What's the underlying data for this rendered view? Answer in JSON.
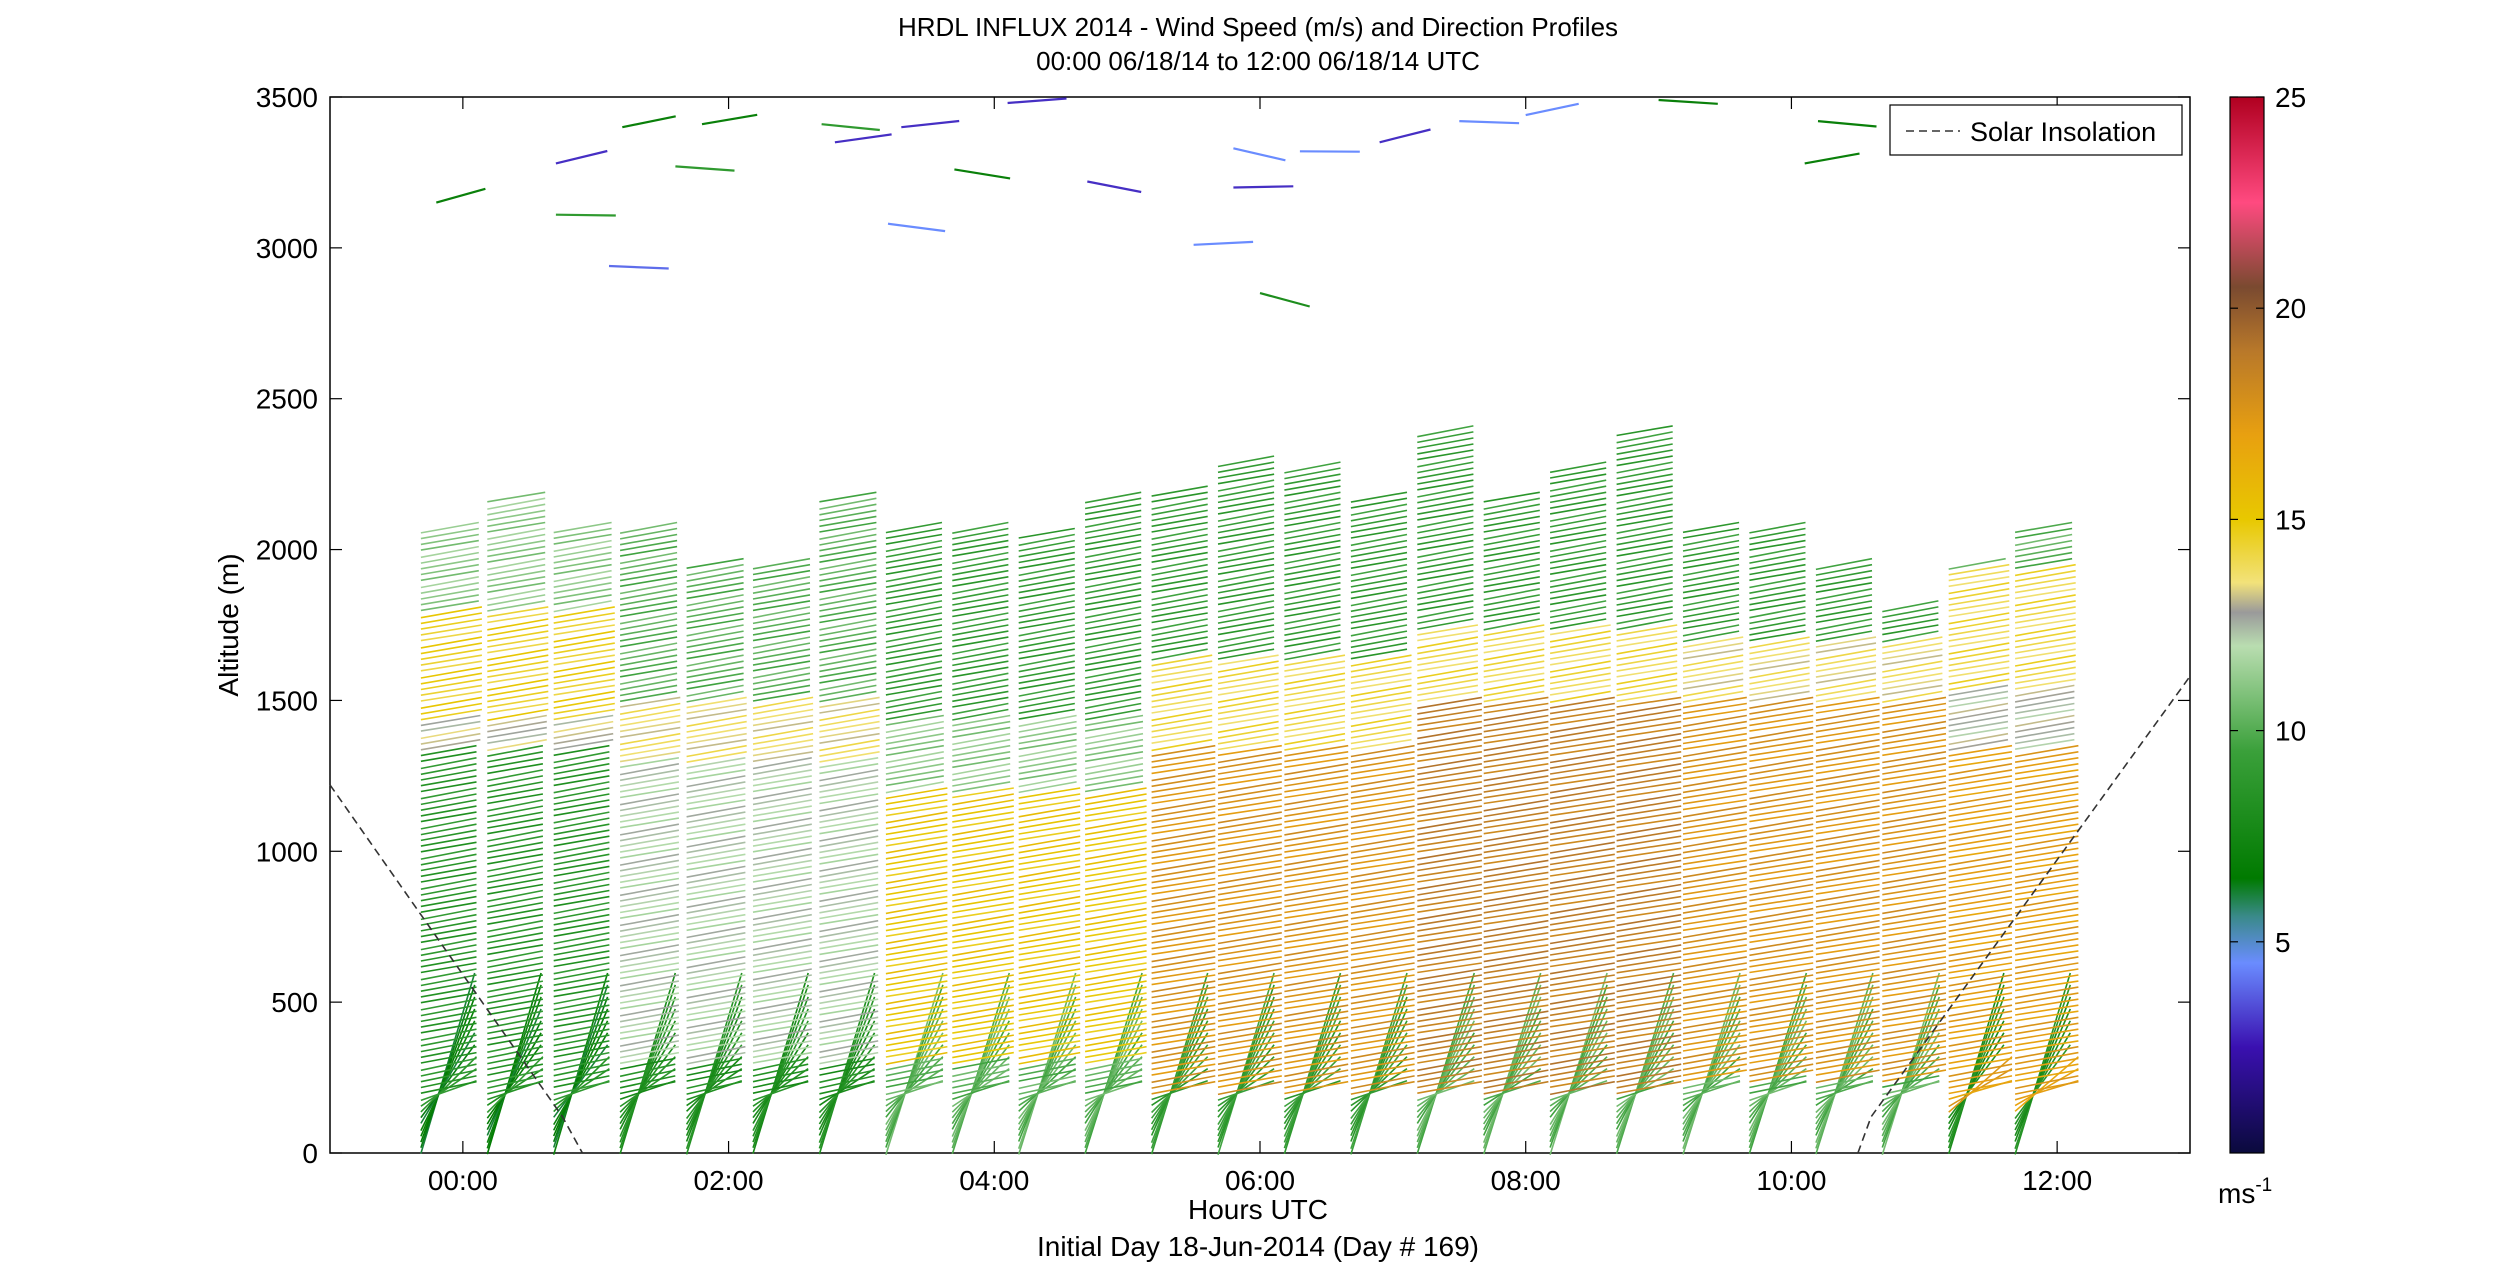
{
  "chart_data": {
    "type": "wind_barb_profile",
    "title": "HRDL INFLUX 2014 - Wind Speed (m/s) and Direction Profiles",
    "subtitle": "00:00 06/18/14 to 12:00 06/18/14  UTC",
    "xlabel": "Hours UTC",
    "xlabel2": "Initial Day 18-Jun-2014 (Day # 169)",
    "ylabel": "Altitude (m)",
    "xlim": [
      -1.0,
      13.0
    ],
    "ylim": [
      0,
      3500
    ],
    "xticks": [
      0,
      2,
      4,
      6,
      8,
      10,
      12
    ],
    "xtick_labels": [
      "00:00",
      "02:00",
      "04:00",
      "06:00",
      "08:00",
      "10:00",
      "12:00"
    ],
    "yticks": [
      0,
      500,
      1000,
      1500,
      2000,
      2500,
      3000,
      3500
    ],
    "ytick_labels": [
      "0",
      "500",
      "1000",
      "1500",
      "2000",
      "2500",
      "3000",
      "3500"
    ],
    "colorbar": {
      "range": [
        0,
        25
      ],
      "ticks": [
        5,
        10,
        15,
        20,
        25
      ],
      "tick_labels": [
        "5",
        "10",
        "15",
        "20",
        "25"
      ],
      "unit_label": "ms",
      "unit_exponent": "-1",
      "stops": [
        {
          "v": 0,
          "color": "#0a0a3c"
        },
        {
          "v": 2.5,
          "color": "#3a10b0"
        },
        {
          "v": 4.5,
          "color": "#6a8cff"
        },
        {
          "v": 5.6,
          "color": "#3a8a8a"
        },
        {
          "v": 6.5,
          "color": "#007a00"
        },
        {
          "v": 9.5,
          "color": "#3aa03a"
        },
        {
          "v": 12.0,
          "color": "#b9ddb0"
        },
        {
          "v": 12.8,
          "color": "#9a9a9a"
        },
        {
          "v": 13.5,
          "color": "#f2e27a"
        },
        {
          "v": 15.0,
          "color": "#e8c800"
        },
        {
          "v": 17.0,
          "color": "#e8a010"
        },
        {
          "v": 19.0,
          "color": "#b8782a"
        },
        {
          "v": 20.5,
          "color": "#7a4a30"
        },
        {
          "v": 22.5,
          "color": "#ff4a80"
        },
        {
          "v": 25.0,
          "color": "#b00020"
        }
      ]
    },
    "legend": {
      "position": "top-right",
      "entries": [
        "Solar Insolation"
      ]
    },
    "solar_insolation": {
      "style": "dashed",
      "color": "#333333",
      "points": [
        [
          -1.0,
          1220
        ],
        [
          0.75,
          120
        ],
        [
          0.9,
          0
        ]
      ],
      "points_rise": [
        [
          10.5,
          0
        ],
        [
          10.6,
          120
        ],
        [
          13.0,
          1580
        ]
      ]
    },
    "profile_times": [
      0.0,
      0.5,
      1.0,
      1.5,
      2.0,
      2.5,
      3.0,
      3.5,
      4.0,
      4.5,
      5.0,
      5.5,
      6.0,
      6.5,
      7.0,
      7.5,
      8.0,
      8.5,
      9.0,
      9.5,
      10.0,
      10.5,
      11.0,
      11.5,
      12.0
    ],
    "profile_tops": [
      2070,
      2180,
      2070,
      2070,
      1960,
      1950,
      2180,
      2070,
      2070,
      2060,
      2170,
      2200,
      2290,
      2270,
      2180,
      2390,
      2180,
      2280,
      2390,
      2070,
      2070,
      1960,
      1810,
      1960,
      2070
    ],
    "speed_layers_by_profile": [
      {
        "t": 0.0,
        "layers": [
          [
            0,
            150,
            6.5
          ],
          [
            150,
            1350,
            8.5
          ],
          [
            1350,
            1450,
            12.8
          ],
          [
            1450,
            1800,
            14.5
          ],
          [
            1800,
            2070,
            11
          ]
        ]
      },
      {
        "t": 2.0,
        "layers": [
          [
            0,
            300,
            8
          ],
          [
            300,
            1300,
            12
          ],
          [
            1300,
            1500,
            13.5
          ],
          [
            1500,
            1960,
            10
          ]
        ]
      },
      {
        "t": 4.0,
        "layers": [
          [
            0,
            300,
            10
          ],
          [
            300,
            1200,
            15
          ],
          [
            1200,
            1450,
            11
          ],
          [
            1450,
            2070,
            9
          ]
        ]
      },
      {
        "t": 6.0,
        "layers": [
          [
            0,
            200,
            9
          ],
          [
            200,
            1350,
            17.5
          ],
          [
            1350,
            1650,
            14
          ],
          [
            1650,
            2290,
            9
          ]
        ]
      },
      {
        "t": 8.0,
        "layers": [
          [
            0,
            200,
            10
          ],
          [
            200,
            1500,
            18.5
          ],
          [
            1500,
            1750,
            14
          ],
          [
            1750,
            2180,
            9
          ]
        ]
      },
      {
        "t": 10.0,
        "layers": [
          [
            0,
            250,
            10
          ],
          [
            250,
            1500,
            17.5
          ],
          [
            1500,
            1700,
            13.5
          ],
          [
            1700,
            2070,
            9
          ]
        ]
      },
      {
        "t": 12.0,
        "layers": [
          [
            0,
            150,
            8
          ],
          [
            150,
            1350,
            17
          ],
          [
            1350,
            1550,
            12.5
          ],
          [
            1550,
            1950,
            14
          ],
          [
            1950,
            2070,
            10
          ]
        ]
      }
    ],
    "upper_level_barbs": [
      {
        "t": -0.2,
        "alt": 3150,
        "speed": 7
      },
      {
        "t": 0.7,
        "alt": 3110,
        "speed": 9
      },
      {
        "t": 0.7,
        "alt": 3280,
        "speed": 3
      },
      {
        "t": 1.1,
        "alt": 2940,
        "speed": 4
      },
      {
        "t": 1.2,
        "alt": 3400,
        "speed": 7
      },
      {
        "t": 1.6,
        "alt": 3270,
        "speed": 9
      },
      {
        "t": 1.8,
        "alt": 3410,
        "speed": 7
      },
      {
        "t": 2.7,
        "alt": 3410,
        "speed": 9
      },
      {
        "t": 2.8,
        "alt": 3350,
        "speed": 3
      },
      {
        "t": 3.2,
        "alt": 3080,
        "speed": 4.5
      },
      {
        "t": 3.3,
        "alt": 3400,
        "speed": 3
      },
      {
        "t": 3.7,
        "alt": 3260,
        "speed": 7
      },
      {
        "t": 4.1,
        "alt": 3480,
        "speed": 3
      },
      {
        "t": 4.7,
        "alt": 3220,
        "speed": 3
      },
      {
        "t": 5.5,
        "alt": 3010,
        "speed": 4.5
      },
      {
        "t": 5.8,
        "alt": 3330,
        "speed": 4.5
      },
      {
        "t": 5.8,
        "alt": 3200,
        "speed": 3
      },
      {
        "t": 6.0,
        "alt": 2850,
        "speed": 8
      },
      {
        "t": 6.3,
        "alt": 3320,
        "speed": 4.5
      },
      {
        "t": 6.9,
        "alt": 3350,
        "speed": 3
      },
      {
        "t": 7.5,
        "alt": 3420,
        "speed": 4.5
      },
      {
        "t": 8.0,
        "alt": 3440,
        "speed": 4.5
      },
      {
        "t": 9.0,
        "alt": 3490,
        "speed": 7
      },
      {
        "t": 10.1,
        "alt": 3280,
        "speed": 7
      },
      {
        "t": 10.2,
        "alt": 3420,
        "speed": 7
      }
    ]
  }
}
